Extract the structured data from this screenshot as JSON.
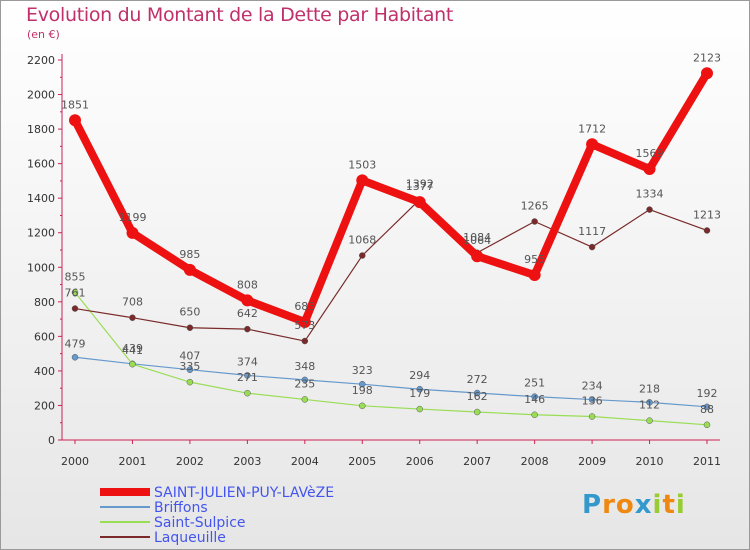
{
  "chart_data": {
    "type": "line",
    "title": "Evolution du Montant de la Dette par Habitant",
    "subtitle": "(en €)",
    "x": [
      "2000",
      "2001",
      "2002",
      "2003",
      "2004",
      "2005",
      "2006",
      "2007",
      "2008",
      "2009",
      "2010",
      "2011"
    ],
    "ylim": [
      0,
      2200
    ],
    "yticks": [
      0,
      200,
      400,
      600,
      800,
      1000,
      1200,
      1400,
      1600,
      1800,
      2000,
      2200
    ],
    "grid": false,
    "legend_position": "bottom-left",
    "series": [
      {
        "name": "SAINT-JULIEN-PUY-LAVèZE",
        "color": "#ee1111",
        "values": [
          1851,
          1199,
          985,
          808,
          683,
          1503,
          1377,
          1064,
          955,
          1712,
          1569,
          2123
        ]
      },
      {
        "name": "Briffons",
        "color": "#6699cc",
        "values": [
          479,
          441,
          407,
          374,
          348,
          323,
          294,
          272,
          251,
          234,
          218,
          192
        ]
      },
      {
        "name": "Saint-Sulpice",
        "color": "#99dd55",
        "values": [
          855,
          439,
          335,
          271,
          235,
          198,
          179,
          162,
          146,
          136,
          112,
          88
        ]
      },
      {
        "name": "Laqueuille",
        "color": "#7a2a2a",
        "values": [
          761,
          708,
          650,
          642,
          573,
          1068,
          1392,
          1084,
          1265,
          1117,
          1334,
          1213
        ]
      }
    ]
  },
  "logo": {
    "text": "Proxiti",
    "letter_colors": [
      "#3399cc",
      "#ee8811",
      "#ee8811",
      "#3399cc",
      "#99cc33",
      "#ee8811",
      "#99cc33"
    ]
  }
}
